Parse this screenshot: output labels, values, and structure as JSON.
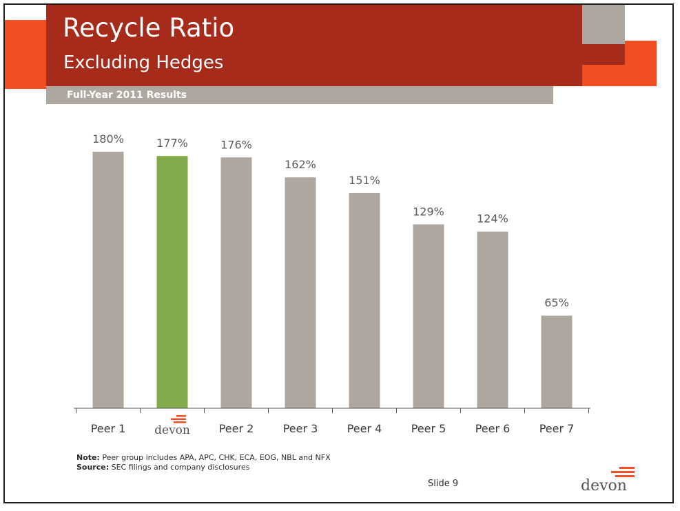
{
  "slide": {
    "title": "Recycle Ratio",
    "subtitle": "Excluding Hedges",
    "results_label": "Full-Year 2011 Results",
    "note_label": "Note:",
    "note_text": "Peer group includes APA, APC, CHK, ECA, EOG, NBL and NFX",
    "source_label": "Source:",
    "source_text": "SEC filings and company disclosures",
    "slide_number": "Slide 9",
    "logo_text": "devon"
  },
  "colors": {
    "title_band": "#a72b1a",
    "accent_orange": "#f04e23",
    "gray": "#ada79f",
    "highlight_bar": "#82a94a",
    "label_text": "#5a5a5a"
  },
  "chart_data": {
    "type": "bar",
    "categories": [
      "Peer 1",
      "devon",
      "Peer 2",
      "Peer 3",
      "Peer 4",
      "Peer 5",
      "Peer 6",
      "Peer 7"
    ],
    "values": [
      180,
      177,
      176,
      162,
      151,
      129,
      124,
      65
    ],
    "value_labels": [
      "180%",
      "177%",
      "176%",
      "162%",
      "151%",
      "129%",
      "124%",
      "65%"
    ],
    "unit": "%",
    "highlight_index": 1,
    "highlight_category_is_logo": true,
    "ylim": [
      0,
      180
    ],
    "grid": false,
    "legend": "none",
    "title": "",
    "xlabel": "",
    "ylabel": ""
  }
}
